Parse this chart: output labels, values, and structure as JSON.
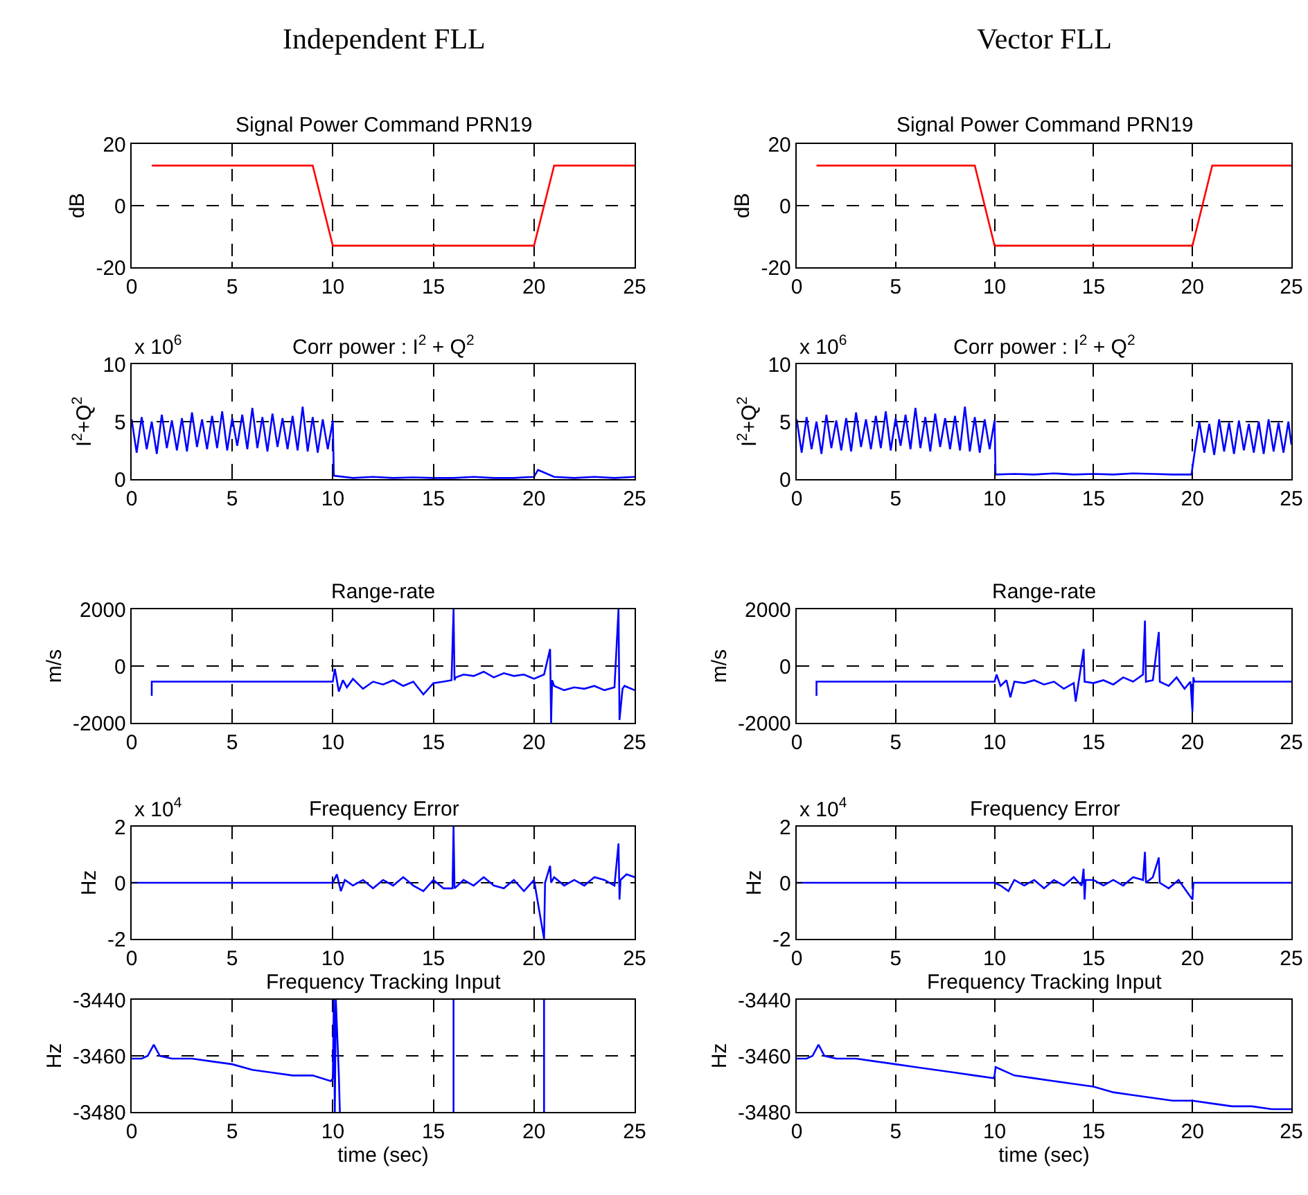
{
  "chart_data": [
    {
      "type": "line",
      "title": "Independent FLL",
      "subtitle": "Signal Power Command PRN19",
      "ylabel": "dB",
      "xlim": [
        0,
        25
      ],
      "xticks": [
        0,
        5,
        10,
        15,
        20,
        25
      ],
      "ylim": [
        -20,
        20
      ],
      "yticks": [
        -20,
        0,
        20
      ],
      "grid": true,
      "line_style": "solid",
      "series": [
        {
          "color": "#ff0000",
          "x": [
            1,
            9,
            10,
            20,
            21,
            25
          ],
          "values": [
            13,
            13,
            -13,
            -13,
            13,
            13
          ]
        }
      ]
    },
    {
      "type": "line",
      "title": "Vector FLL",
      "subtitle": "Signal Power Command PRN19",
      "ylabel": "dB",
      "xlim": [
        0,
        25
      ],
      "xticks": [
        0,
        5,
        10,
        15,
        20,
        25
      ],
      "ylim": [
        -20,
        20
      ],
      "yticks": [
        -20,
        0,
        20
      ],
      "grid": true,
      "line_style": "solid",
      "series": [
        {
          "color": "#ff0000",
          "x": [
            1,
            9,
            10,
            20,
            21,
            25
          ],
          "values": [
            13,
            13,
            -13,
            -13,
            13,
            13
          ]
        }
      ]
    },
    {
      "type": "line",
      "title": "Corr power : I$^{2}$ + Q$^{2}$",
      "ylabel": "I$^{2}$+Q$^{2}$",
      "annotations": [
        "x 10$^{6}$"
      ],
      "xlim": [
        0,
        25
      ],
      "xticks": [
        0,
        5,
        10,
        15,
        20,
        25
      ],
      "ylim": [
        0,
        10
      ],
      "yticks": [
        0,
        5,
        10
      ],
      "grid": true,
      "line_style": "solid",
      "series": [
        {
          "color": "#0000ff",
          "x": [
            0,
            0.25,
            0.5,
            0.75,
            1,
            1.25,
            1.5,
            1.75,
            2,
            2.25,
            2.5,
            2.75,
            3,
            3.25,
            3.5,
            3.75,
            4,
            4.25,
            4.5,
            4.75,
            5,
            5.25,
            5.5,
            5.75,
            6,
            6.25,
            6.5,
            6.75,
            7,
            7.25,
            7.5,
            7.75,
            8,
            8.25,
            8.5,
            8.75,
            9,
            9.25,
            9.5,
            9.75,
            10,
            10.05,
            11,
            12,
            13,
            14,
            15,
            16,
            17,
            18,
            19,
            20,
            20.2,
            21,
            22,
            23,
            24,
            25
          ],
          "values": [
            5.2,
            2.3,
            5.4,
            2.6,
            5.0,
            2.2,
            5.6,
            2.7,
            5.1,
            2.5,
            5.3,
            2.4,
            5.8,
            2.8,
            5.2,
            2.6,
            5.5,
            2.7,
            5.9,
            2.5,
            5.3,
            2.9,
            5.6,
            2.6,
            6.2,
            2.7,
            5.4,
            2.4,
            5.7,
            2.8,
            5.3,
            2.6,
            5.5,
            2.5,
            6.3,
            2.4,
            5.4,
            2.3,
            5.2,
            2.6,
            5.1,
            0.3,
            0.1,
            0.2,
            0.1,
            0.15,
            0.1,
            0.1,
            0.2,
            0.1,
            0.1,
            0.2,
            0.8,
            0.2,
            0.1,
            0.2,
            0.1,
            0.2
          ]
        }
      ]
    },
    {
      "type": "line",
      "title": "Corr power : I$^{2}$ + Q$^{2}$",
      "ylabel": "I$^{2}$+Q$^{2}$",
      "annotations": [
        "x 10$^{6}$"
      ],
      "xlim": [
        0,
        25
      ],
      "xticks": [
        0,
        5,
        10,
        15,
        20,
        25
      ],
      "ylim": [
        0,
        10
      ],
      "yticks": [
        0,
        5,
        10
      ],
      "grid": true,
      "line_style": "solid",
      "series": [
        {
          "color": "#0000ff",
          "x": [
            0,
            0.25,
            0.5,
            0.75,
            1,
            1.25,
            1.5,
            1.75,
            2,
            2.25,
            2.5,
            2.75,
            3,
            3.25,
            3.5,
            3.75,
            4,
            4.25,
            4.5,
            4.75,
            5,
            5.25,
            5.5,
            5.75,
            6,
            6.25,
            6.5,
            6.75,
            7,
            7.25,
            7.5,
            7.75,
            8,
            8.25,
            8.5,
            8.75,
            9,
            9.25,
            9.5,
            9.75,
            10,
            10.05,
            11,
            12,
            13,
            14,
            15,
            16,
            17,
            18,
            19,
            19.95,
            20.1,
            20.35,
            20.6,
            20.85,
            21.1,
            21.35,
            21.6,
            21.85,
            22.1,
            22.35,
            22.6,
            22.85,
            23.1,
            23.35,
            23.6,
            23.85,
            24.1,
            24.35,
            24.6,
            24.85,
            25
          ],
          "values": [
            5.2,
            2.3,
            5.4,
            2.6,
            5.0,
            2.2,
            5.6,
            2.7,
            5.1,
            2.5,
            5.3,
            2.4,
            5.8,
            2.8,
            5.2,
            2.6,
            5.5,
            2.7,
            5.9,
            2.5,
            5.3,
            2.9,
            5.6,
            2.6,
            6.2,
            2.7,
            5.4,
            2.4,
            5.7,
            2.8,
            5.3,
            2.6,
            5.5,
            2.5,
            6.3,
            2.4,
            5.4,
            2.3,
            5.2,
            2.6,
            5.1,
            0.4,
            0.45,
            0.4,
            0.5,
            0.4,
            0.45,
            0.4,
            0.5,
            0.45,
            0.4,
            0.4,
            2.2,
            5.0,
            2.3,
            4.8,
            2.1,
            5.2,
            2.4,
            4.9,
            2.2,
            5.1,
            2.5,
            4.8,
            2.3,
            5.0,
            2.2,
            5.2,
            2.4,
            4.9,
            2.3,
            5.0,
            3.0
          ]
        }
      ]
    },
    {
      "type": "line",
      "title": "Range-rate",
      "ylabel": "m/s",
      "xlim": [
        0,
        25
      ],
      "xticks": [
        0,
        5,
        10,
        15,
        20,
        25
      ],
      "ylim": [
        -2000,
        2000
      ],
      "yticks": [
        -2000,
        0,
        2000
      ],
      "grid": true,
      "line_style": "solid",
      "series": [
        {
          "color": "#0000ff",
          "x": [
            1,
            1,
            10,
            10.1,
            10.3,
            10.5,
            10.7,
            11,
            11.5,
            12,
            12.5,
            13,
            13.5,
            14,
            14.5,
            15,
            15.5,
            15.9,
            16,
            16.05,
            16.1,
            16.5,
            17,
            17.5,
            18,
            18.5,
            19,
            19.5,
            20,
            20.5,
            20.8,
            20.85,
            20.9,
            21,
            21.5,
            22,
            22.5,
            23,
            23.5,
            24,
            24.2,
            24.25,
            24.4,
            24.5,
            25
          ],
          "values": [
            -1050,
            -550,
            -550,
            -100,
            -900,
            -500,
            -750,
            -450,
            -800,
            -550,
            -650,
            -500,
            -700,
            -550,
            -1000,
            -600,
            -550,
            -500,
            2000,
            -500,
            -400,
            -300,
            -350,
            -200,
            -400,
            -250,
            -350,
            -300,
            -450,
            -300,
            600,
            -2000,
            -500,
            -700,
            -850,
            -750,
            -800,
            -700,
            -850,
            -750,
            2000,
            -1900,
            -800,
            -700,
            -850
          ]
        }
      ]
    },
    {
      "type": "line",
      "title": "Range-rate",
      "ylabel": "m/s",
      "xlim": [
        0,
        25
      ],
      "xticks": [
        0,
        5,
        10,
        15,
        20,
        25
      ],
      "ylim": [
        -2000,
        2000
      ],
      "yticks": [
        -2000,
        0,
        2000
      ],
      "grid": true,
      "line_style": "solid",
      "series": [
        {
          "color": "#0000ff",
          "x": [
            1,
            1,
            10,
            10.1,
            10.3,
            10.6,
            10.8,
            11,
            11.5,
            12,
            12.5,
            13,
            13.5,
            14,
            14.1,
            14.5,
            14.55,
            15,
            15.5,
            16,
            16.5,
            17,
            17.5,
            17.6,
            17.65,
            18,
            18.3,
            18.35,
            18.8,
            19.2,
            19.6,
            19.9,
            20,
            20.05,
            20.1,
            25
          ],
          "values": [
            -1050,
            -550,
            -550,
            -300,
            -700,
            -500,
            -1100,
            -550,
            -600,
            -500,
            -650,
            -550,
            -800,
            -600,
            -1250,
            600,
            -550,
            -600,
            -500,
            -650,
            -400,
            -550,
            -300,
            1600,
            -550,
            -500,
            1200,
            -550,
            -700,
            -400,
            -800,
            -550,
            -1600,
            -400,
            -550,
            -550
          ]
        }
      ]
    },
    {
      "type": "line",
      "title": "Frequency Error",
      "ylabel": "Hz",
      "annotations": [
        "x 10$^{4}$"
      ],
      "xlim": [
        0,
        25
      ],
      "xticks": [
        0,
        5,
        10,
        15,
        20,
        25
      ],
      "ylim": [
        -2,
        2
      ],
      "yticks": [
        -2,
        0,
        2
      ],
      "grid": true,
      "line_style": "solid",
      "series": [
        {
          "color": "#0000ff",
          "x": [
            0,
            10,
            10.2,
            10.4,
            10.6,
            11,
            11.5,
            12,
            12.5,
            13,
            13.5,
            14,
            14.5,
            15,
            15.5,
            15.95,
            16,
            16.05,
            16.5,
            17,
            17.5,
            18,
            18.5,
            19,
            19.5,
            20,
            20.5,
            20.55,
            20.8,
            20.85,
            21,
            21.5,
            22,
            22.5,
            23,
            23.5,
            24,
            24.2,
            24.25,
            24.3,
            24.6,
            25
          ],
          "values": [
            0,
            0,
            0.3,
            -0.3,
            0.1,
            -0.1,
            0.1,
            -0.2,
            0.1,
            -0.1,
            0.2,
            -0.1,
            -0.3,
            0.1,
            -0.2,
            -0.2,
            2,
            -0.2,
            0.1,
            -0.1,
            0.2,
            -0.1,
            -0.2,
            0.1,
            -0.3,
            0.1,
            -2,
            0,
            0.6,
            0,
            0.2,
            -0.1,
            0.1,
            -0.1,
            0.2,
            0.1,
            -0.1,
            1.4,
            -0.6,
            0.1,
            0.3,
            0.2
          ]
        }
      ]
    },
    {
      "type": "line",
      "title": "Frequency Error",
      "ylabel": "Hz",
      "annotations": [
        "x 10$^{4}$"
      ],
      "xlim": [
        0,
        25
      ],
      "xticks": [
        0,
        5,
        10,
        15,
        20,
        25
      ],
      "ylim": [
        -2,
        2
      ],
      "yticks": [
        -2,
        0,
        2
      ],
      "grid": true,
      "line_style": "solid",
      "series": [
        {
          "color": "#0000ff",
          "x": [
            0,
            10,
            10.3,
            10.7,
            11,
            11.5,
            12,
            12.5,
            13,
            13.5,
            14,
            14.4,
            14.5,
            14.55,
            14.6,
            15,
            15.5,
            16,
            16.5,
            17,
            17.5,
            17.6,
            17.65,
            18,
            18.3,
            18.35,
            18.8,
            19.3,
            19.7,
            20,
            20.05,
            25
          ],
          "values": [
            0,
            0,
            -0.1,
            -0.3,
            0.1,
            -0.1,
            0.1,
            -0.2,
            0.1,
            -0.1,
            0.2,
            -0.1,
            0.5,
            -0.6,
            0.1,
            0.1,
            -0.1,
            0.1,
            -0.1,
            0.2,
            0.1,
            1.1,
            0,
            0.2,
            0.9,
            0,
            -0.2,
            0.1,
            -0.3,
            -0.6,
            0,
            0
          ]
        }
      ]
    },
    {
      "type": "line",
      "title": "Frequency Tracking Input",
      "ylabel": "Hz",
      "xlabel": "time (sec)",
      "xlim": [
        0,
        25
      ],
      "xticks": [
        0,
        5,
        10,
        15,
        20,
        25
      ],
      "ylim": [
        -3480,
        -3440
      ],
      "yticks": [
        -3480,
        -3460,
        -3440
      ],
      "grid": true,
      "line_style": "solid",
      "series": [
        {
          "color": "#0000ff",
          "x": [
            0,
            0.5,
            0.8,
            1.1,
            1.4,
            2,
            3,
            4,
            5,
            6,
            7,
            8,
            9,
            9.9,
            10,
            10.05,
            10.1,
            10.15,
            10.3,
            10.35,
            12,
            16,
            16,
            18,
            20.5,
            20.5
          ],
          "values": [
            -3461,
            -3461,
            -3460,
            -3456,
            -3460,
            -3461,
            -3461,
            -3462,
            -3463,
            -3465,
            -3466,
            -3467,
            -3467,
            -3469,
            -3468,
            -3440,
            -3480,
            -3440,
            -3467,
            -3480,
            null,
            -3440,
            -3480,
            null,
            -3440,
            -3480
          ]
        }
      ]
    },
    {
      "type": "line",
      "title": "Frequency Tracking Input",
      "ylabel": "Hz",
      "xlabel": "time (sec)",
      "xlim": [
        0,
        25
      ],
      "xticks": [
        0,
        5,
        10,
        15,
        20,
        25
      ],
      "ylim": [
        -3480,
        -3440
      ],
      "yticks": [
        -3480,
        -3460,
        -3440
      ],
      "grid": true,
      "line_style": "solid",
      "series": [
        {
          "color": "#0000ff",
          "x": [
            0,
            0.5,
            0.8,
            1.1,
            1.4,
            2,
            3,
            4,
            5,
            6,
            7,
            8,
            9,
            9.95,
            10,
            10.05,
            11,
            12,
            13,
            14,
            15,
            16,
            17,
            18,
            19,
            20,
            21,
            22,
            23,
            24,
            25
          ],
          "values": [
            -3461,
            -3461,
            -3460,
            -3456,
            -3460,
            -3461,
            -3461,
            -3462,
            -3463,
            -3464,
            -3465,
            -3466,
            -3467,
            -3468,
            -3467,
            -3464,
            -3467,
            -3468,
            -3469,
            -3470,
            -3471,
            -3473,
            -3474,
            -3475,
            -3476,
            -3476,
            -3477,
            -3478,
            -3478,
            -3479,
            -3479
          ]
        }
      ]
    }
  ]
}
